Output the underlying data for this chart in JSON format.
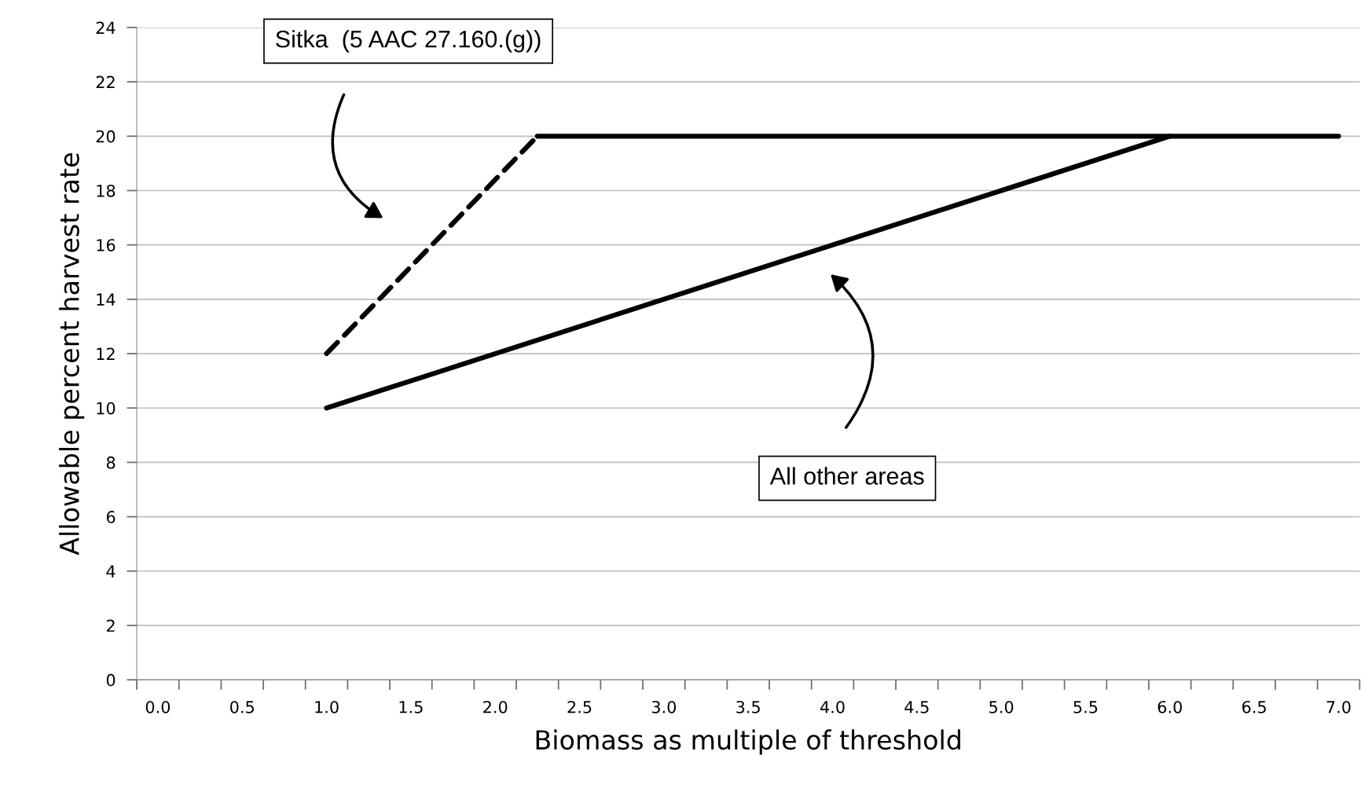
{
  "chart_data": {
    "type": "line",
    "xlabel": "Biomass as multiple of threshold",
    "ylabel": "Allowable percent harvest rate",
    "series": [
      {
        "color": "#000000",
        "line_style": "dashed",
        "x": [
          1.0,
          2.25
        ],
        "values": [
          12,
          20
        ]
      },
      {
        "color": "#000000",
        "line_style": "solid",
        "x": [
          2.25,
          7.0
        ],
        "values": [
          20,
          20
        ]
      },
      {
        "color": "#000000",
        "line_style": "solid",
        "x": [
          1.0,
          6.0
        ],
        "values": [
          10,
          20
        ]
      }
    ],
    "xlim": [
      -0.125,
      7.125
    ],
    "ylim": [
      0,
      24
    ],
    "yticks": [
      0,
      2,
      4,
      6,
      8,
      10,
      12,
      14,
      16,
      18,
      20,
      22,
      24
    ],
    "xticks": [
      {
        "value": -0.125,
        "label": null
      },
      {
        "value": 0,
        "label": "0.0"
      },
      {
        "value": 0.125,
        "label": null
      },
      {
        "value": 0.375,
        "label": null
      },
      {
        "value": 0.5,
        "label": "0.5"
      },
      {
        "value": 0.625,
        "label": null
      },
      {
        "value": 0.875,
        "label": null
      },
      {
        "value": 1,
        "label": "1.0"
      },
      {
        "value": 1.125,
        "label": null
      },
      {
        "value": 1.375,
        "label": null
      },
      {
        "value": 1.5,
        "label": "1.5"
      },
      {
        "value": 1.625,
        "label": null
      },
      {
        "value": 1.875,
        "label": null
      },
      {
        "value": 2,
        "label": "2.0"
      },
      {
        "value": 2.125,
        "label": null
      },
      {
        "value": 2.375,
        "label": null
      },
      {
        "value": 2.5,
        "label": "2.5"
      },
      {
        "value": 2.625,
        "label": null
      },
      {
        "value": 2.875,
        "label": null
      },
      {
        "value": 3,
        "label": "3.0"
      },
      {
        "value": 3.125,
        "label": null
      },
      {
        "value": 3.375,
        "label": null
      },
      {
        "value": 3.5,
        "label": "3.5"
      },
      {
        "value": 3.625,
        "label": null
      },
      {
        "value": 3.875,
        "label": null
      },
      {
        "value": 4,
        "label": "4.0"
      },
      {
        "value": 4.125,
        "label": null
      },
      {
        "value": 4.375,
        "label": null
      },
      {
        "value": 4.5,
        "label": "4.5"
      },
      {
        "value": 4.625,
        "label": null
      },
      {
        "value": 4.875,
        "label": null
      },
      {
        "value": 5,
        "label": "5.0"
      },
      {
        "value": 5.125,
        "label": null
      },
      {
        "value": 5.375,
        "label": null
      },
      {
        "value": 5.5,
        "label": "5.5"
      },
      {
        "value": 5.625,
        "label": null
      },
      {
        "value": 5.875,
        "label": null
      },
      {
        "value": 6,
        "label": "6.0"
      },
      {
        "value": 6.125,
        "label": null
      },
      {
        "value": 6.375,
        "label": null
      },
      {
        "value": 6.5,
        "label": "6.5"
      },
      {
        "value": 6.625,
        "label": null
      },
      {
        "value": 6.875,
        "label": null
      },
      {
        "value": 7,
        "label": "7.0"
      },
      {
        "value": 7.125,
        "label": null
      }
    ],
    "grid": "y",
    "marker": "none",
    "annotations": [
      "Sitka  (5 AAC 27.160.(g))",
      "All other areas"
    ]
  }
}
